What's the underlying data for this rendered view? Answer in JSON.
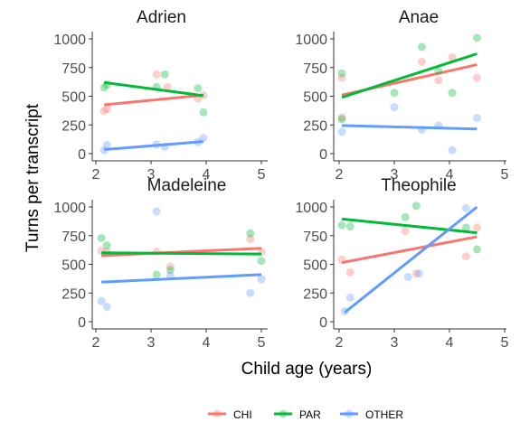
{
  "colors": {
    "CHI": "#F8766D",
    "PAR": "#00BA38",
    "OTHER": "#619CFF",
    "panel_bg": "#ffffff",
    "axis": "#333333"
  },
  "chart_data": {
    "type": "scatter",
    "subtype": "faceted scatter with linear fit lines",
    "xlabel": "Child age (years)",
    "ylabel": "Turns per transcript",
    "ylim": [
      0,
      1000
    ],
    "yticks": [
      0,
      250,
      500,
      750,
      1000
    ],
    "legend": {
      "position": "bottom",
      "entries": [
        "CHI",
        "PAR",
        "OTHER"
      ]
    },
    "grid": false,
    "panels": [
      {
        "title": "Adrien",
        "xlim": [
          2,
          5.1
        ],
        "xticks": [
          2,
          3,
          4,
          5
        ],
        "series": [
          {
            "name": "CHI",
            "points": [
              [
                2.15,
                370
              ],
              [
                2.2,
                390
              ],
              [
                3.1,
                690
              ],
              [
                3.3,
                580
              ],
              [
                3.85,
                480
              ],
              [
                3.95,
                510
              ]
            ],
            "fit": [
              [
                2.15,
                425
              ],
              [
                3.95,
                510
              ]
            ]
          },
          {
            "name": "PAR",
            "points": [
              [
                2.15,
                575
              ],
              [
                2.2,
                600
              ],
              [
                3.1,
                580
              ],
              [
                3.25,
                690
              ],
              [
                3.85,
                570
              ],
              [
                3.95,
                360
              ]
            ],
            "fit": [
              [
                2.15,
                620
              ],
              [
                3.95,
                505
              ]
            ]
          },
          {
            "name": "OTHER",
            "points": [
              [
                2.15,
                30
              ],
              [
                2.2,
                75
              ],
              [
                3.1,
                80
              ],
              [
                3.25,
                60
              ],
              [
                3.85,
                100
              ],
              [
                3.95,
                135
              ]
            ],
            "fit": [
              [
                2.15,
                35
              ],
              [
                3.95,
                105
              ]
            ]
          }
        ]
      },
      {
        "title": "Anae",
        "xlim": [
          2,
          5.1
        ],
        "xticks": [
          2,
          3,
          4,
          5
        ],
        "series": [
          {
            "name": "CHI",
            "points": [
              [
                2.05,
                660
              ],
              [
                2.05,
                315
              ],
              [
                3.5,
                800
              ],
              [
                3.8,
                640
              ],
              [
                4.05,
                840
              ],
              [
                4.5,
                660
              ]
            ],
            "fit": [
              [
                2.05,
                510
              ],
              [
                4.5,
                775
              ]
            ]
          },
          {
            "name": "PAR",
            "points": [
              [
                2.05,
                700
              ],
              [
                2.05,
                300
              ],
              [
                3.0,
                530
              ],
              [
                3.5,
                930
              ],
              [
                3.8,
                720
              ],
              [
                4.05,
                530
              ],
              [
                4.5,
                1010
              ]
            ],
            "fit": [
              [
                2.05,
                490
              ],
              [
                4.5,
                870
              ]
            ]
          },
          {
            "name": "OTHER",
            "points": [
              [
                2.05,
                190
              ],
              [
                3.0,
                405
              ],
              [
                3.5,
                210
              ],
              [
                3.8,
                245
              ],
              [
                4.05,
                30
              ],
              [
                4.5,
                310
              ]
            ],
            "fit": [
              [
                2.05,
                245
              ],
              [
                4.5,
                215
              ]
            ]
          }
        ]
      },
      {
        "title": "Madeleine",
        "xlim": [
          2,
          5.1
        ],
        "xticks": [
          2,
          3,
          4,
          5
        ],
        "series": [
          {
            "name": "CHI",
            "points": [
              [
                2.1,
                620
              ],
              [
                2.2,
                610
              ],
              [
                3.1,
                610
              ],
              [
                3.35,
                480
              ],
              [
                4.8,
                720
              ],
              [
                5.0,
                610
              ]
            ],
            "fit": [
              [
                2.1,
                575
              ],
              [
                5.0,
                640
              ]
            ]
          },
          {
            "name": "PAR",
            "points": [
              [
                2.1,
                730
              ],
              [
                2.2,
                665
              ],
              [
                3.1,
                410
              ],
              [
                3.35,
                450
              ],
              [
                4.8,
                770
              ],
              [
                5.0,
                530
              ]
            ],
            "fit": [
              [
                2.1,
                600
              ],
              [
                5.0,
                590
              ]
            ]
          },
          {
            "name": "OTHER",
            "points": [
              [
                2.1,
                180
              ],
              [
                2.2,
                130
              ],
              [
                3.1,
                960
              ],
              [
                3.35,
                400
              ],
              [
                4.8,
                250
              ],
              [
                5.0,
                370
              ]
            ],
            "fit": [
              [
                2.1,
                345
              ],
              [
                5.0,
                410
              ]
            ]
          }
        ]
      },
      {
        "title": "Theophile",
        "xlim": [
          2,
          5.1
        ],
        "xticks": [
          2,
          3,
          4,
          5
        ],
        "series": [
          {
            "name": "CHI",
            "points": [
              [
                2.05,
                540
              ],
              [
                2.2,
                430
              ],
              [
                3.2,
                790
              ],
              [
                3.4,
                420
              ],
              [
                4.3,
                570
              ],
              [
                4.5,
                820
              ]
            ],
            "fit": [
              [
                2.05,
                515
              ],
              [
                4.5,
                740
              ]
            ]
          },
          {
            "name": "PAR",
            "points": [
              [
                2.05,
                840
              ],
              [
                2.2,
                830
              ],
              [
                3.2,
                910
              ],
              [
                3.4,
                1010
              ],
              [
                4.3,
                820
              ],
              [
                4.5,
                630
              ]
            ],
            "fit": [
              [
                2.05,
                895
              ],
              [
                4.5,
                775
              ]
            ]
          },
          {
            "name": "OTHER",
            "points": [
              [
                2.1,
                90
              ],
              [
                2.2,
                210
              ],
              [
                3.25,
                390
              ],
              [
                3.45,
                420
              ],
              [
                4.3,
                990
              ]
            ],
            "fit": [
              [
                2.1,
                80
              ],
              [
                4.5,
                1000
              ]
            ]
          }
        ]
      }
    ]
  }
}
